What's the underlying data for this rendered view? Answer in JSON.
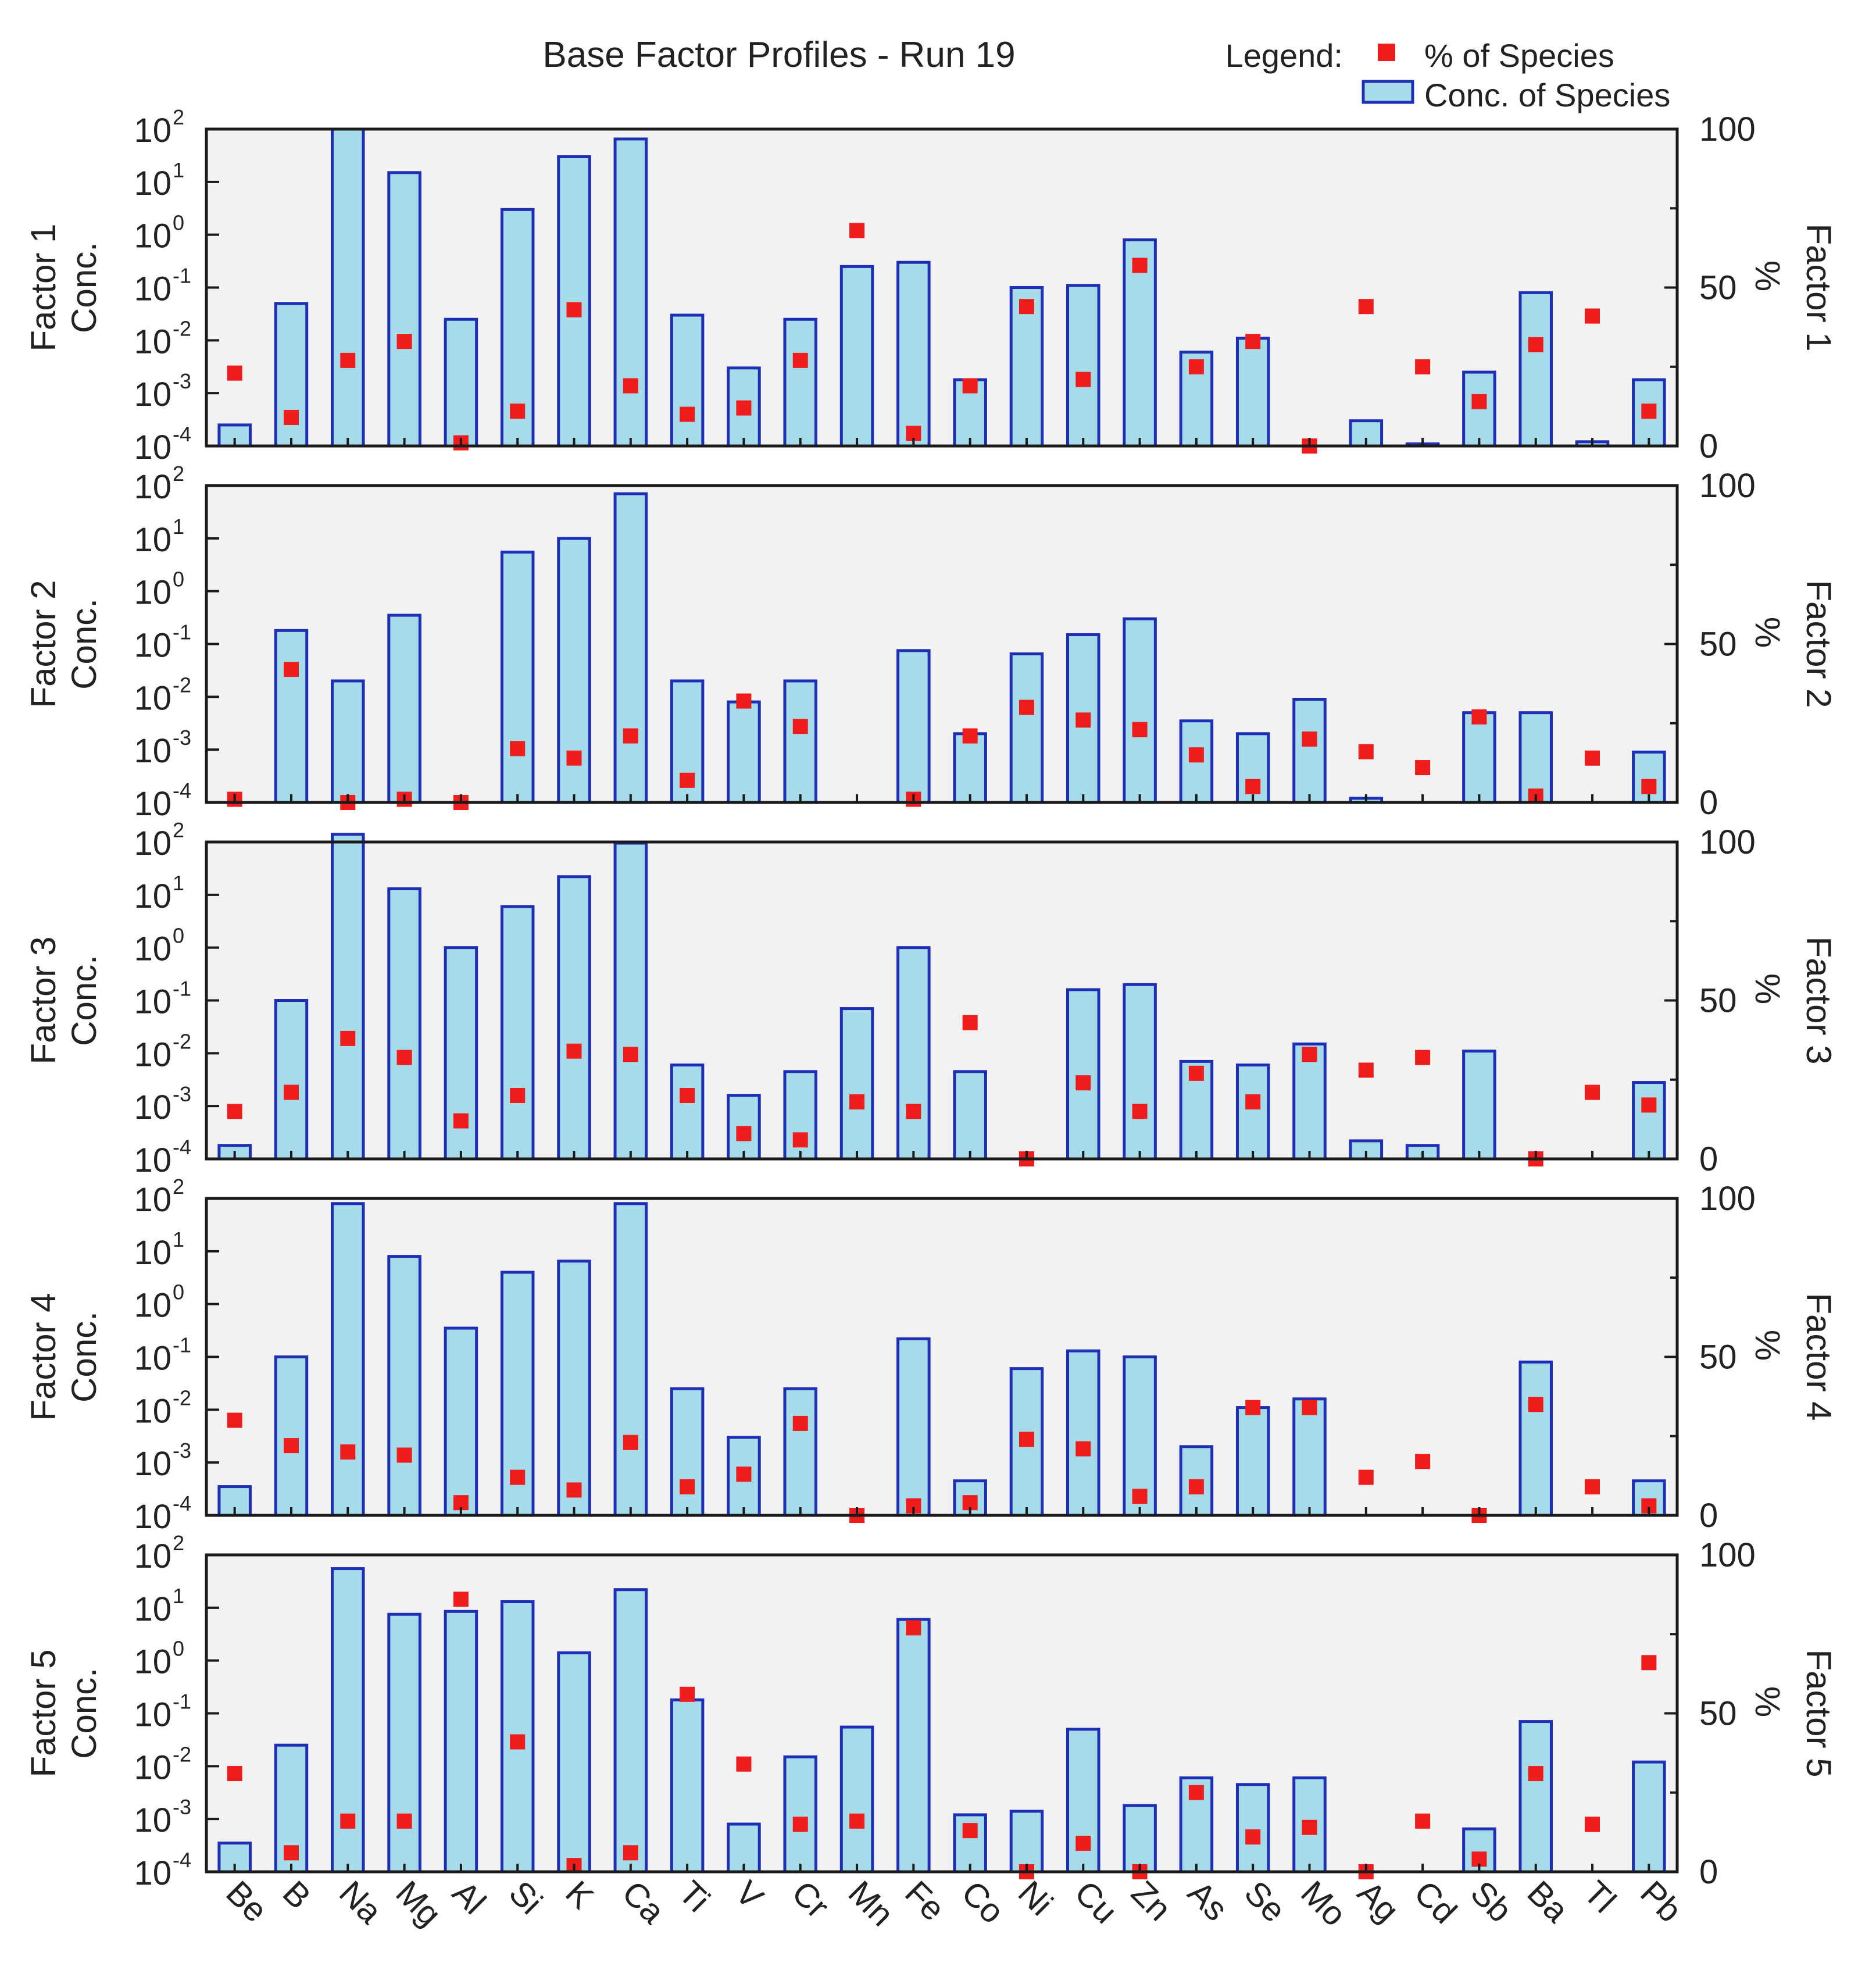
{
  "chart_data": {
    "type": "bar",
    "title": "Base Factor Profiles - Run 19",
    "legend": {
      "label": "Legend:",
      "placement": "top-right",
      "entries": [
        {
          "name": "% of Species",
          "marker": "square",
          "color": "#ee1c1c"
        },
        {
          "name": "Conc. of Species",
          "marker": "bar",
          "color": "#a6dcea",
          "stroke": "#1f2fb5"
        }
      ]
    },
    "categories": [
      "Be",
      "B",
      "Na",
      "Mg",
      "Al",
      "Si",
      "K",
      "Ca",
      "Ti",
      "V",
      "Cr",
      "Mn",
      "Fe",
      "Co",
      "Ni",
      "Cu",
      "Zn",
      "As",
      "Se",
      "Mo",
      "Ag",
      "Cd",
      "Sb",
      "Ba",
      "Tl",
      "Pb"
    ],
    "left_axis": {
      "scale": "log",
      "ylim": [
        0.0001,
        100
      ],
      "ticks": [
        {
          "base": "10",
          "exp": "-4"
        },
        {
          "base": "10",
          "exp": "-3"
        },
        {
          "base": "10",
          "exp": "-2"
        },
        {
          "base": "10",
          "exp": "-1"
        },
        {
          "base": "10",
          "exp": "0"
        },
        {
          "base": "10",
          "exp": "1"
        },
        {
          "base": "10",
          "exp": "2"
        }
      ]
    },
    "right_axis": {
      "scale": "linear",
      "ylim": [
        0,
        100
      ],
      "ticks": [
        "0",
        "50",
        "100"
      ],
      "label": "%"
    },
    "grid": false,
    "panels": [
      {
        "ylabel": "Factor 1 Conc.",
        "right_label": "Factor 1",
        "conc": [
          0.00025,
          0.05,
          100,
          15,
          0.025,
          3,
          30,
          65,
          0.03,
          0.003,
          0.025,
          0.25,
          0.3,
          0.0018,
          0.1,
          0.11,
          0.8,
          0.006,
          0.011,
          null,
          0.0003,
          0.00011,
          0.0025,
          0.08,
          0.00012,
          0.0018
        ],
        "percent": [
          23,
          9,
          27,
          33,
          1,
          11,
          43,
          19,
          10,
          12,
          27,
          68,
          4,
          19,
          44,
          21,
          57,
          25,
          33,
          0,
          44,
          25,
          14,
          32,
          41,
          11
        ]
      },
      {
        "ylabel": "Factor 2 Conc.",
        "right_label": "Factor 2",
        "conc": [
          null,
          0.18,
          0.02,
          0.35,
          null,
          5.5,
          10,
          70,
          0.02,
          0.008,
          0.02,
          null,
          0.075,
          0.002,
          0.065,
          0.15,
          0.3,
          0.0035,
          0.002,
          0.009,
          0.00012,
          null,
          0.005,
          0.005,
          null,
          0.0009
        ],
        "percent": [
          1,
          42,
          0,
          1,
          0,
          17,
          14,
          21,
          7,
          32,
          24,
          null,
          1,
          21,
          30,
          26,
          23,
          15,
          5,
          20,
          16,
          11,
          27,
          2,
          14,
          5
        ]
      },
      {
        "ylabel": "Factor 3 Conc.",
        "right_label": "Factor 3",
        "conc": [
          0.00018,
          0.1,
          140,
          13,
          1,
          6,
          22,
          95,
          0.006,
          0.0016,
          0.0045,
          0.07,
          1,
          0.0045,
          null,
          0.16,
          0.2,
          0.007,
          0.006,
          0.015,
          0.00022,
          0.00018,
          0.011,
          null,
          null,
          0.0028
        ],
        "percent": [
          15,
          21,
          38,
          32,
          12,
          20,
          34,
          33,
          20,
          8,
          6,
          18,
          15,
          43,
          0,
          24,
          15,
          27,
          18,
          33,
          28,
          32,
          null,
          0,
          21,
          17
        ]
      },
      {
        "ylabel": "Factor 4 Conc.",
        "right_label": "Factor 4",
        "conc": [
          0.00035,
          0.1,
          80,
          8,
          0.35,
          4,
          6.5,
          80,
          0.025,
          0.003,
          0.025,
          null,
          0.22,
          0.00045,
          0.06,
          0.13,
          0.1,
          0.002,
          0.011,
          0.016,
          null,
          null,
          null,
          0.08,
          null,
          0.00045
        ],
        "percent": [
          30,
          22,
          20,
          19,
          4,
          12,
          8,
          23,
          9,
          13,
          29,
          0,
          3,
          4,
          24,
          21,
          6,
          9,
          34,
          34,
          12,
          17,
          0,
          35,
          9,
          3
        ]
      },
      {
        "ylabel": "Factor 5 Conc.",
        "right_label": "Factor 5",
        "conc": [
          0.00035,
          0.025,
          55,
          7.5,
          8.5,
          13,
          1.4,
          22,
          0.18,
          0.0008,
          0.015,
          0.055,
          6,
          0.0012,
          0.0014,
          0.05,
          0.0018,
          0.006,
          0.0045,
          0.006,
          null,
          null,
          0.00065,
          0.07,
          null,
          0.012
        ],
        "percent": [
          31,
          6,
          16,
          16,
          86,
          41,
          2,
          6,
          56,
          34,
          15,
          16,
          77,
          13,
          0,
          9,
          0,
          25,
          11,
          14,
          0,
          16,
          4,
          31,
          15,
          66
        ]
      }
    ]
  }
}
